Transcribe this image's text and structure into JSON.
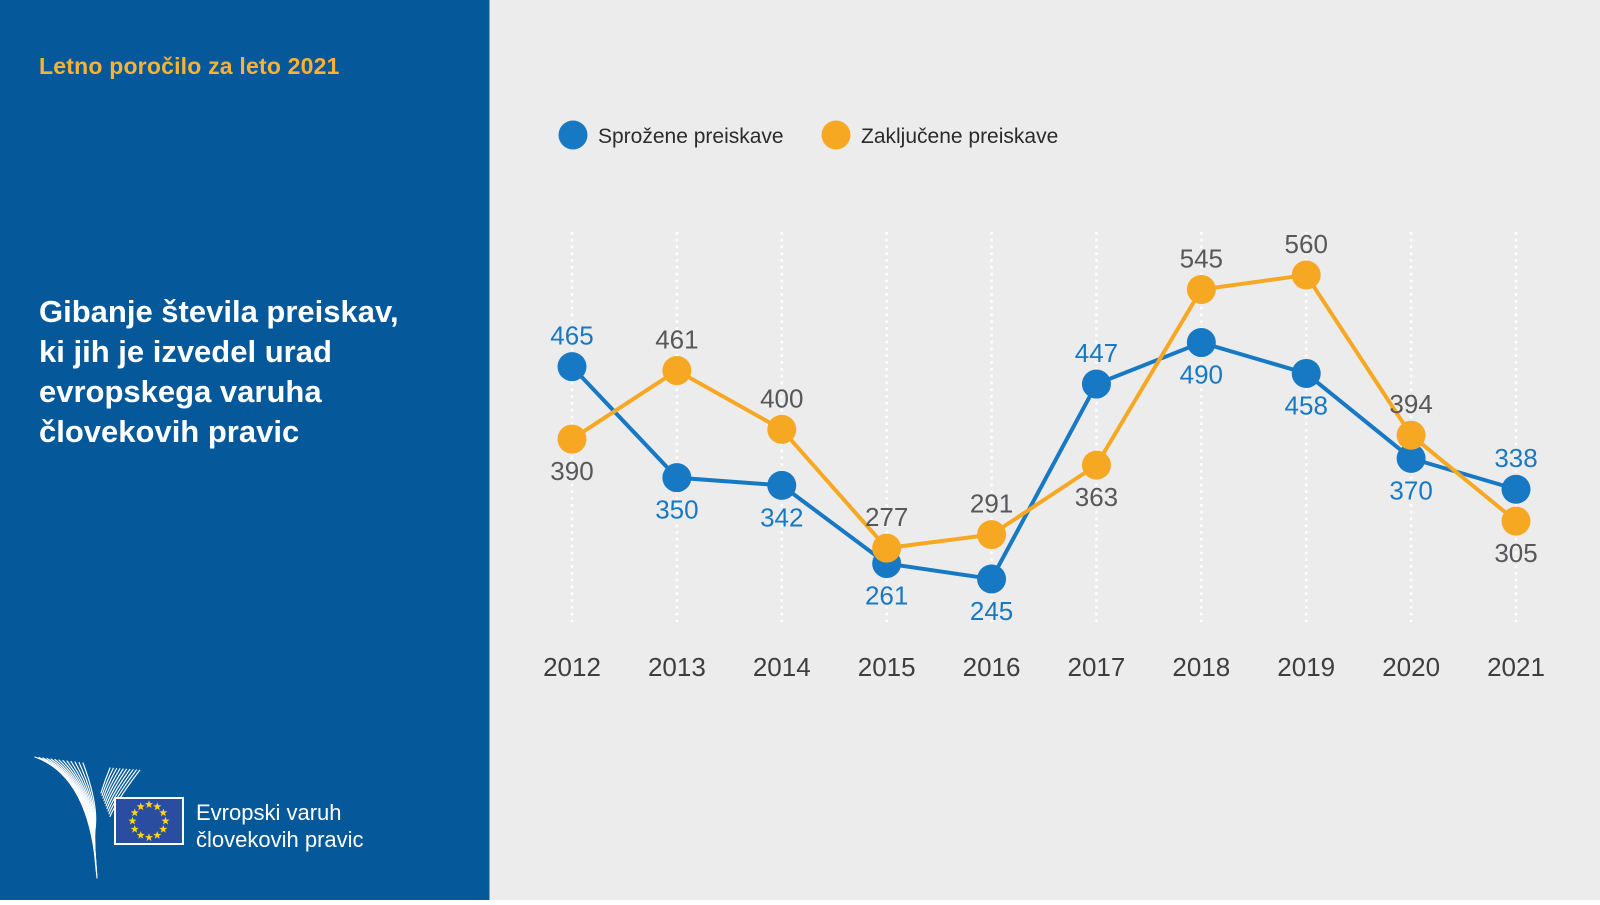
{
  "sidebar": {
    "report_label": "Letno poročilo za leto 2021",
    "title_lines": [
      "Gibanje števila preiskav,",
      "ki jih je izvedel urad",
      "evropskega varuha",
      "človekovih pravic"
    ],
    "logo_text_line1": "Evropski varuh",
    "logo_text_line2": "človekovih pravic"
  },
  "colors": {
    "sidebar_bg": "#05589a",
    "sidebar_edge": "#7aa6cd",
    "chart_bg": "#ececec",
    "accent_yellow": "#f9b233",
    "blue_series": "#1779c4",
    "yellow_series": "#f7a823",
    "yellow_value_label": "#58585b",
    "year_label": "#3e3e3e",
    "legend_text": "#2b2b2b",
    "gridline": "#ffffff",
    "white": "#ffffff",
    "eu_flag_blue": "#2a4da2",
    "eu_star_yellow": "#ffd617"
  },
  "chart_data": {
    "type": "line",
    "title": "Gibanje števila preiskav, ki jih je izvedel urad evropskega varuha človekovih pravic",
    "categories": [
      "2012",
      "2013",
      "2014",
      "2015",
      "2016",
      "2017",
      "2018",
      "2019",
      "2020",
      "2021"
    ],
    "series": [
      {
        "name": "Sprožene preiskave",
        "color_key": "blue_series",
        "label_color_key": "blue_series",
        "values": [
          465,
          350,
          342,
          261,
          245,
          447,
          490,
          458,
          370,
          338
        ]
      },
      {
        "name": "Zaključene preiskave",
        "color_key": "yellow_series",
        "label_color_key": "yellow_value_label",
        "values": [
          390,
          461,
          400,
          277,
          291,
          363,
          545,
          560,
          394,
          305
        ]
      }
    ],
    "xlabel": "",
    "ylabel": "",
    "ylim": [
      220,
      600
    ],
    "grid": "vertical-dotted-white",
    "legend_position": "top",
    "data_labels": "on"
  }
}
